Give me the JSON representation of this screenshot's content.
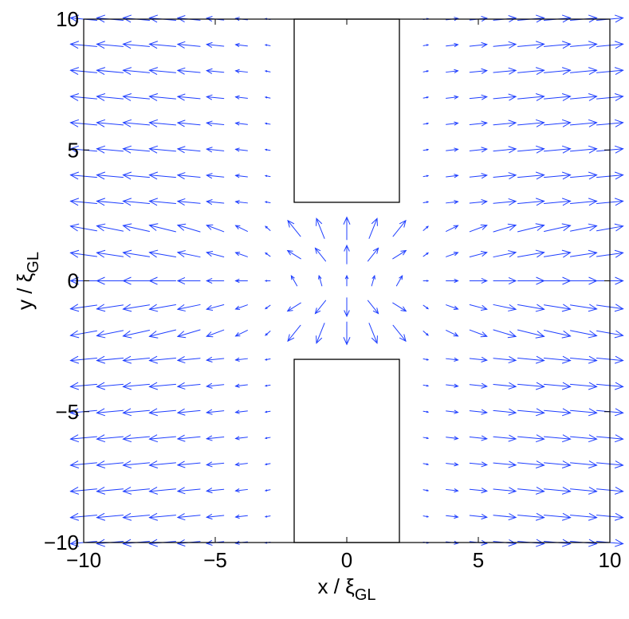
{
  "chart_data": {
    "type": "quiver",
    "title": "",
    "xlabel": {
      "main": "x / ξ",
      "subscript": "GL"
    },
    "ylabel": {
      "main": "y / ξ",
      "subscript": "GL"
    },
    "xlim": [
      -10,
      10
    ],
    "ylim": [
      -10,
      10
    ],
    "xticks": [
      -10,
      -5,
      0,
      5,
      10
    ],
    "yticks": [
      -10,
      -5,
      0,
      5,
      10
    ],
    "xtick_labels": [
      "−10",
      "−5",
      "0",
      "5",
      "10"
    ],
    "ytick_labels": [
      "−10",
      "−5",
      "0",
      "5",
      "10"
    ],
    "grid": false,
    "legend": "none",
    "arrow_color": "#1f3fff",
    "obstacle_color": "#000000",
    "grid_spacing": 1,
    "field": {
      "description": "current flow from a constriction between two rectangular obstacles",
      "constriction_center": [
        0,
        0
      ],
      "constriction_halfwidth": 3,
      "rows_y": [
        -10,
        -9,
        -8,
        -7,
        -6,
        -5,
        -4,
        -3,
        -2,
        -1,
        0,
        1,
        2,
        3,
        4,
        5,
        6,
        7,
        8,
        9,
        10
      ],
      "outer_columns_x": [
        -10,
        -9,
        -8,
        -7,
        -6,
        -5,
        -4,
        -3,
        3,
        4,
        5,
        6,
        7,
        8,
        9,
        10
      ],
      "inner_columns_x": [
        -2,
        -1,
        0,
        1,
        2
      ]
    },
    "obstacles": [
      {
        "name": "top",
        "x": [
          -2,
          2
        ],
        "y": [
          3,
          10
        ]
      },
      {
        "name": "bottom",
        "x": [
          -2,
          2
        ],
        "y": [
          -10,
          -3
        ]
      }
    ]
  }
}
